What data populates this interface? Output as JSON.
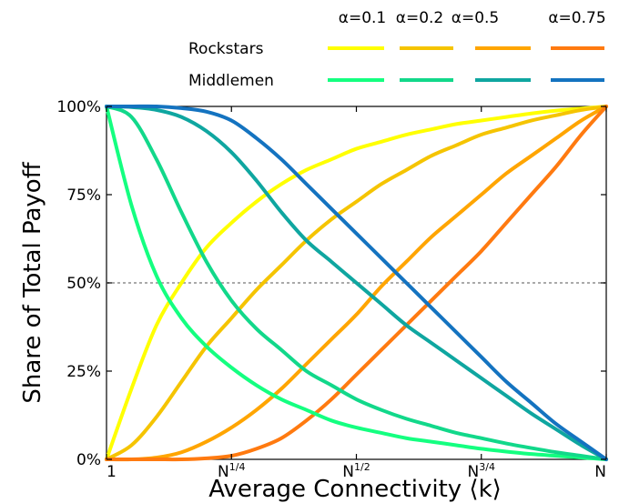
{
  "chart_data": {
    "type": "line",
    "title": "",
    "xlabel": "Average Connectivity ⟨k⟩",
    "ylabel": "Share of Total Payoff",
    "x_ticks": [
      {
        "value": 0,
        "label": "1"
      },
      {
        "value": 0.25,
        "label": "N",
        "sup": "1/4"
      },
      {
        "value": 0.5,
        "label": "N",
        "sup": "1/2"
      },
      {
        "value": 0.75,
        "label": "N",
        "sup": "3/4"
      },
      {
        "value": 1,
        "label": "N"
      }
    ],
    "xlim": [
      0,
      1
    ],
    "ylim": [
      0,
      100
    ],
    "y_ticks": [
      {
        "value": 0,
        "label": "0%"
      },
      {
        "value": 25,
        "label": "25%"
      },
      {
        "value": 50,
        "label": "50%"
      },
      {
        "value": 75,
        "label": "75%"
      },
      {
        "value": 100,
        "label": "100%"
      }
    ],
    "reference_line": {
      "y": 50,
      "style": "dotted",
      "color": "#aaaaaa"
    },
    "legend": {
      "placement": "top",
      "alpha_headers": [
        "α=0.1",
        "α=0.2",
        "α=0.5",
        "α=0.75"
      ],
      "row_labels": [
        "Rockstars",
        "Middlemen"
      ]
    },
    "x": [
      0,
      0.05,
      0.1,
      0.15,
      0.2,
      0.25,
      0.3,
      0.35,
      0.4,
      0.45,
      0.5,
      0.55,
      0.6,
      0.65,
      0.7,
      0.75,
      0.8,
      0.85,
      0.9,
      0.95,
      1
    ],
    "series": [
      {
        "group": "Rockstars",
        "alpha": "α=0.1",
        "color": "#ffff00",
        "values": [
          0,
          20,
          38,
          50,
          60,
          67,
          73,
          78,
          82,
          85,
          88,
          90,
          92,
          93.5,
          95,
          96,
          97,
          98,
          98.8,
          99.4,
          100
        ]
      },
      {
        "group": "Rockstars",
        "alpha": "α=0.2",
        "color": "#f5c400",
        "values": [
          0,
          4,
          12,
          22,
          32,
          40,
          48,
          55,
          62,
          68,
          73,
          78,
          82,
          86,
          89,
          92,
          94,
          96,
          97.5,
          99,
          100
        ]
      },
      {
        "group": "Rockstars",
        "alpha": "α=0.5",
        "color": "#ffa500",
        "values": [
          0,
          0,
          0.5,
          2,
          5,
          9,
          14,
          20,
          27,
          34,
          41,
          49,
          56,
          63,
          69,
          75,
          81,
          86,
          91,
          96,
          100
        ]
      },
      {
        "group": "Rockstars",
        "alpha": "α=0.75",
        "color": "#ff7a10",
        "values": [
          0,
          0,
          0,
          0,
          0.3,
          1,
          3,
          6,
          11,
          17,
          24,
          31,
          38,
          45,
          52,
          59,
          67,
          75,
          83,
          92,
          100
        ]
      },
      {
        "group": "Middlemen",
        "alpha": "α=0.1",
        "color": "#14ff80",
        "values": [
          100,
          72,
          52,
          40,
          32,
          26,
          21,
          17,
          14,
          11,
          9,
          7.5,
          6,
          5,
          4,
          3,
          2.2,
          1.5,
          1,
          0.5,
          0
        ]
      },
      {
        "group": "Middlemen",
        "alpha": "α=0.2",
        "color": "#12d88a",
        "values": [
          100,
          97,
          85,
          70,
          56,
          45,
          37,
          31,
          25,
          21,
          17,
          14,
          11.5,
          9.5,
          7.5,
          6,
          4.5,
          3.2,
          2,
          1,
          0
        ]
      },
      {
        "group": "Middlemen",
        "alpha": "α=0.5",
        "color": "#0fa6a0",
        "values": [
          100,
          99.8,
          99,
          97,
          93,
          87,
          79,
          70,
          62,
          56,
          50,
          44,
          38,
          33,
          28,
          23,
          18,
          13,
          8.5,
          4,
          0
        ]
      },
      {
        "group": "Middlemen",
        "alpha": "α=0.75",
        "color": "#1473c0",
        "values": [
          100,
          100,
          100,
          99.5,
          98.5,
          96,
          91,
          85,
          78,
          71,
          64,
          57,
          50,
          43,
          36,
          29,
          22,
          16,
          10,
          5,
          0
        ]
      }
    ]
  }
}
